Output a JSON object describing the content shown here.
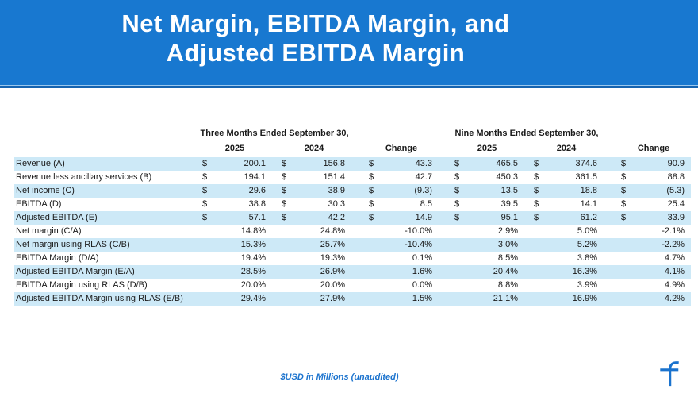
{
  "banner": {
    "title_line1": "Net Margin, EBITDA Margin, and",
    "title_line2": "Adjusted EBITDA Margin"
  },
  "chart_data": {
    "type": "table",
    "title": "Net Margin, EBITDA Margin, and Adjusted EBITDA Margin",
    "group_headers": [
      {
        "label": "Three Months Ended September 30,"
      },
      {
        "label": "Nine Months Ended September 30,"
      }
    ],
    "columns": [
      "2025",
      "2024",
      "Change",
      "2025",
      "2024",
      "Change"
    ],
    "currency_symbol": "$",
    "rows": [
      {
        "label": "Revenue (A)",
        "currency": true,
        "values": [
          "200.1",
          "156.8",
          "43.3",
          "465.5",
          "374.6",
          "90.9"
        ]
      },
      {
        "label": "Revenue less ancillary services (B)",
        "currency": true,
        "values": [
          "194.1",
          "151.4",
          "42.7",
          "450.3",
          "361.5",
          "88.8"
        ]
      },
      {
        "label": "Net income (C)",
        "currency": true,
        "values": [
          "29.6",
          "38.9",
          "(9.3)",
          "13.5",
          "18.8",
          "(5.3)"
        ]
      },
      {
        "label": "EBITDA (D)",
        "currency": true,
        "values": [
          "38.8",
          "30.3",
          "8.5",
          "39.5",
          "14.1",
          "25.4"
        ]
      },
      {
        "label": "Adjusted EBITDA (E)",
        "currency": true,
        "values": [
          "57.1",
          "42.2",
          "14.9",
          "95.1",
          "61.2",
          "33.9"
        ]
      },
      {
        "label": "Net margin (C/A)",
        "currency": false,
        "values": [
          "14.8%",
          "24.8%",
          "-10.0%",
          "2.9%",
          "5.0%",
          "-2.1%"
        ]
      },
      {
        "label": "Net margin using RLAS (C/B)",
        "currency": false,
        "values": [
          "15.3%",
          "25.7%",
          "-10.4%",
          "3.0%",
          "5.2%",
          "-2.2%"
        ]
      },
      {
        "label": "EBITDA Margin (D/A)",
        "currency": false,
        "values": [
          "19.4%",
          "19.3%",
          "0.1%",
          "8.5%",
          "3.8%",
          "4.7%"
        ]
      },
      {
        "label": "Adjusted EBITDA Margin (E/A)",
        "currency": false,
        "values": [
          "28.5%",
          "26.9%",
          "1.6%",
          "20.4%",
          "16.3%",
          "4.1%"
        ]
      },
      {
        "label": "EBITDA Margin using RLAS (D/B)",
        "currency": false,
        "values": [
          "20.0%",
          "20.0%",
          "0.0%",
          "8.8%",
          "3.9%",
          "4.9%"
        ]
      },
      {
        "label": "Adjusted EBITDA Margin using RLAS (E/B)",
        "currency": false,
        "values": [
          "29.4%",
          "27.9%",
          "1.5%",
          "21.1%",
          "16.9%",
          "4.2%"
        ]
      }
    ]
  },
  "footer": {
    "note": "$USD in Millions (unaudited)"
  },
  "colors": {
    "banner_blue": "#1878D0",
    "banner_edge_dark": "#1563B0",
    "banner_edge_light": "#9CC9EE",
    "row_stripe": "#CDE9F7",
    "accent_blue": "#1B73CE"
  },
  "icons": {
    "logo": "f-logo"
  }
}
